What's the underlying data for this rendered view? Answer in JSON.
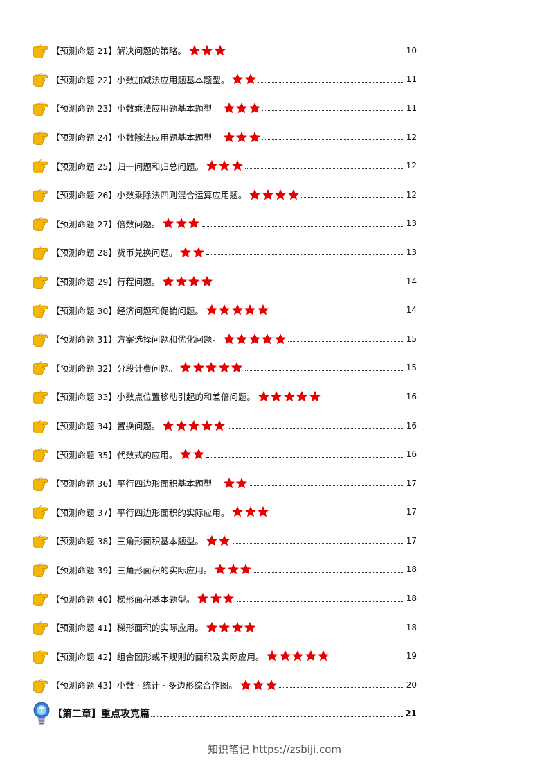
{
  "entries": [
    {
      "label": "【预测命题 21】解决问题的策略。",
      "stars": 3,
      "page": "10"
    },
    {
      "label": "【预测命题 22】小数加减法应用题基本题型。",
      "stars": 2,
      "page": "11"
    },
    {
      "label": "【预测命题 23】小数乘法应用题基本题型。",
      "stars": 3,
      "page": "11"
    },
    {
      "label": "【预测命题 24】小数除法应用题基本题型。",
      "stars": 3,
      "page": "12"
    },
    {
      "label": "【预测命题 25】归一问题和归总问题。",
      "stars": 3,
      "page": "12"
    },
    {
      "label": "【预测命题 26】小数乘除法四则混合运算应用题。",
      "stars": 4,
      "page": "12"
    },
    {
      "label": "【预测命题 27】倍数问题。",
      "stars": 3,
      "page": "13"
    },
    {
      "label": "【预测命题 28】货币兑换问题。",
      "stars": 2,
      "page": "13"
    },
    {
      "label": "【预测命题 29】行程问题。",
      "stars": 4,
      "page": "14"
    },
    {
      "label": "【预测命题 30】经济问题和促销问题。",
      "stars": 5,
      "page": "14"
    },
    {
      "label": "【预测命题 31】方案选择问题和优化问题。",
      "stars": 5,
      "page": "15"
    },
    {
      "label": "【预测命题 32】分段计费问题。",
      "stars": 5,
      "page": "15"
    },
    {
      "label": "【预测命题 33】小数点位置移动引起的和差倍问题。",
      "stars": 5,
      "page": "16"
    },
    {
      "label": "【预测命题 34】置换问题。",
      "stars": 5,
      "page": "16"
    },
    {
      "label": "【预测命题 35】代数式的应用。",
      "stars": 2,
      "page": "16"
    },
    {
      "label": "【预测命题 36】平行四边形面积基本题型。",
      "stars": 2,
      "page": "17"
    },
    {
      "label": "【预测命题 37】平行四边形面积的实际应用。",
      "stars": 3,
      "page": "17"
    },
    {
      "label": "【预测命题 38】三角形面积基本题型。",
      "stars": 2,
      "page": "17"
    },
    {
      "label": "【预测命题 39】三角形面积的实际应用。",
      "stars": 3,
      "page": "18"
    },
    {
      "label": "【预测命题 40】梯形面积基本题型。",
      "stars": 3,
      "page": "18"
    },
    {
      "label": "【预测命题 41】梯形面积的实际应用。",
      "stars": 4,
      "page": "18"
    },
    {
      "label": "【预测命题 42】组合图形或不规则的面积及实际应用。",
      "stars": 5,
      "page": "19"
    },
    {
      "label": "【预测命题 43】小数 · 统计 · 多边形综合作图。",
      "stars": 3,
      "page": "20"
    }
  ],
  "chapter": {
    "label": "【第二章】重点攻克篇",
    "page": "21"
  },
  "footer": "知识笔记 https://zsbiji.com",
  "colors": {
    "star": "#e60000",
    "hand": "#f5b800",
    "bulb": "#3d7ad6"
  },
  "icons": {
    "entry": "pointing-hand-icon",
    "rating": "star-icon",
    "chapter": "lightbulb-icon"
  }
}
